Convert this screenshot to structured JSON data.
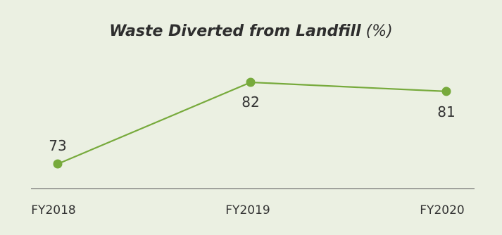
{
  "chart_data": {
    "type": "line",
    "title": "Waste Diverted from Landfill",
    "title_unit": "(%)",
    "categories": [
      "FY2018",
      "FY2019",
      "FY2020"
    ],
    "series": [
      {
        "values": [
          73,
          82,
          81
        ]
      }
    ],
    "data_labels": [
      "73",
      "82",
      "81"
    ],
    "xlabel": "",
    "ylabel": "",
    "grid": false,
    "legend": "none",
    "colors": {
      "background": "#ebf0e2",
      "line": "#77aa3c",
      "axis": "#555555",
      "text": "#333333"
    }
  }
}
